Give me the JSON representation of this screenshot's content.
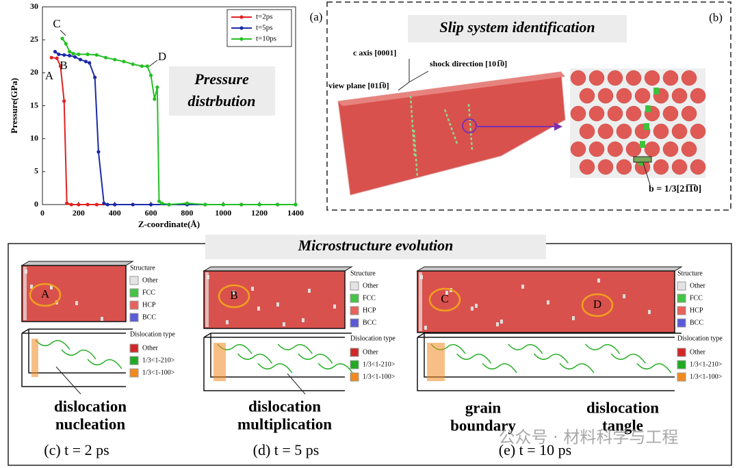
{
  "chart_data": {
    "type": "line",
    "xlabel": "Z-coordinate(Å)",
    "ylabel": "Pressure(GPa)",
    "xlim": [
      0,
      1400
    ],
    "xticks": [
      0,
      200,
      400,
      600,
      800,
      1000,
      1200,
      1400
    ],
    "ylim": [
      0,
      30
    ],
    "yticks": [
      0,
      5,
      10,
      15,
      20,
      25,
      30
    ],
    "grid": false,
    "legend": "upper right",
    "series": [
      {
        "name": "t=2ps",
        "color": "#e02020",
        "x": [
          50,
          80,
          100,
          120,
          135,
          160,
          200,
          250,
          300,
          400,
          500,
          600,
          700,
          800,
          900,
          1000,
          1100,
          1200,
          1300,
          1400
        ],
        "values": [
          22.3,
          22.2,
          21.0,
          15.7,
          0.2,
          0,
          0,
          0,
          0,
          0,
          0,
          0,
          0,
          0,
          0,
          0,
          0,
          0,
          0,
          0
        ]
      },
      {
        "name": "t=5ps",
        "color": "#1a2aa8",
        "x": [
          70,
          90,
          120,
          150,
          180,
          210,
          240,
          260,
          290,
          310,
          340,
          360,
          400,
          500,
          600,
          700,
          800,
          900,
          1000,
          1100,
          1200,
          1300,
          1400
        ],
        "values": [
          23.2,
          22.8,
          22.7,
          22.6,
          22.4,
          22.0,
          21.7,
          21.5,
          19.3,
          8.0,
          0.2,
          0,
          0,
          0,
          0,
          0,
          0,
          0,
          0,
          0,
          0,
          0,
          0
        ]
      },
      {
        "name": "t=10ps",
        "color": "#22c022",
        "x": [
          110,
          130,
          150,
          170,
          200,
          250,
          300,
          350,
          400,
          450,
          500,
          550,
          580,
          600,
          620,
          635,
          645,
          660,
          700,
          800,
          900,
          1000,
          1100,
          1200,
          1300,
          1400
        ],
        "values": [
          25.2,
          24.4,
          23.2,
          22.9,
          22.8,
          22.8,
          22.7,
          22.3,
          22.0,
          21.7,
          21.3,
          21.0,
          21.0,
          19.6,
          16.0,
          17.8,
          0.5,
          0.2,
          0,
          0.2,
          0,
          0,
          0,
          0,
          0,
          0
        ]
      }
    ],
    "annotations": [
      "A",
      "B",
      "C",
      "D"
    ],
    "panel_label": "(a)",
    "inset_text": [
      "Pressure",
      "distrbution"
    ]
  },
  "slip_panel": {
    "label": "(b)",
    "title": "Slip system identification",
    "axis_labels": [
      "c axis [0001]",
      "shock direction [101̅0]",
      "view plane [011̅0]"
    ],
    "burgers": "b = 1/3[21̅1̅0]"
  },
  "microstructure": {
    "title": "Microstructure evolution",
    "structure_colors": [
      "#e4e4e4",
      "#44c444",
      "#e8625c",
      "#5a5ad8"
    ],
    "dislocation_colors": [
      "#d02828",
      "#22aa22",
      "#f08a20"
    ],
    "panels": [
      {
        "ellipse_labels": [
          "A"
        ],
        "structure_title": "Structure",
        "structure_types": [
          "Other",
          "FCC",
          "HCP",
          "BCC"
        ],
        "dislocation_title": "Dislocation type",
        "dislocation_types": [
          "Other",
          "1/3<1-210>",
          "1/3<1-100>"
        ],
        "captions": [
          [
            "dislocation",
            "nucleation"
          ]
        ],
        "label": "(c) t = 2 ps"
      },
      {
        "ellipse_labels": [
          "B"
        ],
        "structure_title": "Structure",
        "structure_types": [
          "Other",
          "FCC",
          "HCP",
          "BCC"
        ],
        "dislocation_title": "Dislocation type",
        "dislocation_types": [
          "Other",
          "1/3<1-210>",
          "1/3<1-100>"
        ],
        "captions": [
          [
            "dislocation",
            "multiplication"
          ]
        ],
        "label": "(d) t = 5 ps"
      },
      {
        "ellipse_labels": [
          "C",
          "D"
        ],
        "structure_title": "Structure",
        "structure_types": [
          "Other",
          "FCC",
          "HCP",
          "BCC"
        ],
        "dislocation_title": "Dislocation type",
        "dislocation_types": [
          "Other",
          "1/3<1-210>",
          "1/3<1-100>"
        ],
        "captions": [
          [
            "grain",
            "boundary"
          ],
          [
            "dislocation",
            "tangle"
          ]
        ],
        "label": "(e) t = 10 ps"
      }
    ]
  },
  "watermark": "公众号 · 材料科学与工程"
}
